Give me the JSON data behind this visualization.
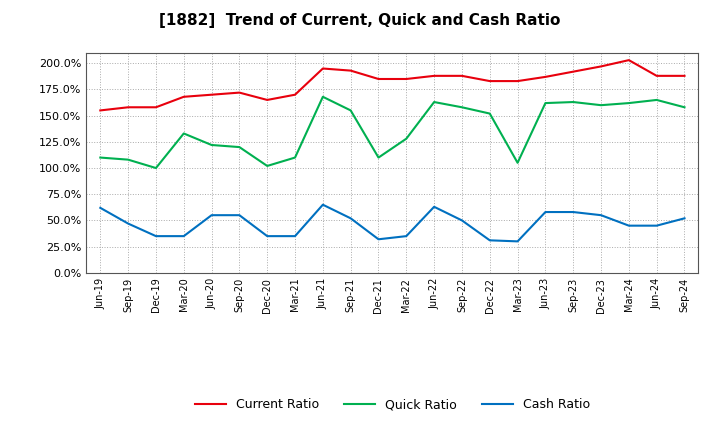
{
  "title": "[1882]  Trend of Current, Quick and Cash Ratio",
  "labels": [
    "Jun-19",
    "Sep-19",
    "Dec-19",
    "Mar-20",
    "Jun-20",
    "Sep-20",
    "Dec-20",
    "Mar-21",
    "Jun-21",
    "Sep-21",
    "Dec-21",
    "Mar-22",
    "Jun-22",
    "Sep-22",
    "Dec-22",
    "Mar-23",
    "Jun-23",
    "Sep-23",
    "Dec-23",
    "Mar-24",
    "Jun-24",
    "Sep-24"
  ],
  "current_ratio": [
    1.55,
    1.58,
    1.58,
    1.68,
    1.7,
    1.72,
    1.65,
    1.7,
    1.95,
    1.93,
    1.85,
    1.85,
    1.88,
    1.88,
    1.83,
    1.83,
    1.87,
    1.92,
    1.97,
    2.03,
    1.88,
    1.88
  ],
  "quick_ratio": [
    1.1,
    1.08,
    1.0,
    1.33,
    1.22,
    1.2,
    1.02,
    1.1,
    1.68,
    1.55,
    1.1,
    1.28,
    1.63,
    1.58,
    1.52,
    1.05,
    1.62,
    1.63,
    1.6,
    1.62,
    1.65,
    1.58
  ],
  "cash_ratio": [
    0.62,
    0.47,
    0.35,
    0.35,
    0.55,
    0.55,
    0.35,
    0.35,
    0.65,
    0.52,
    0.32,
    0.35,
    0.63,
    0.5,
    0.31,
    0.3,
    0.58,
    0.58,
    0.55,
    0.45,
    0.45,
    0.52
  ],
  "current_color": "#e8000d",
  "quick_color": "#00b050",
  "cash_color": "#0070c0",
  "bg_color": "#ffffff",
  "grid_color": "#aaaaaa",
  "ylim": [
    0.0,
    2.1
  ],
  "yticks": [
    0.0,
    0.25,
    0.5,
    0.75,
    1.0,
    1.25,
    1.5,
    1.75,
    2.0
  ],
  "legend_labels": [
    "Current Ratio",
    "Quick Ratio",
    "Cash Ratio"
  ]
}
